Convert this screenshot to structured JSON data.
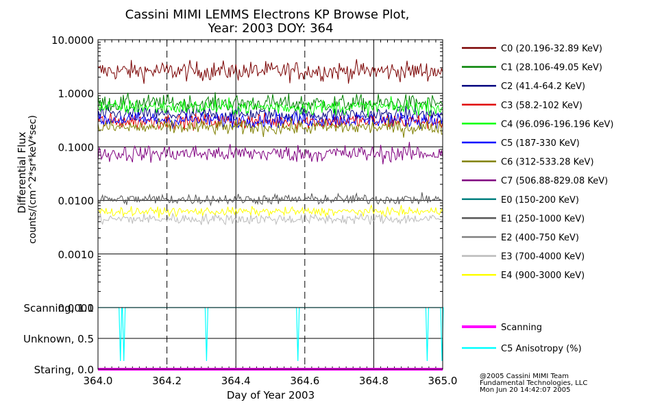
{
  "title_line1": "Cassini MIMI LEMMS Electrons KP Browse Plot,",
  "title_line2": "Year: 2003 DOY: 364",
  "footer": {
    "line1": "@2005 Cassini MIMI Team",
    "line2": "Fundamental Technologies, LLC",
    "line3": "Mon Jun 20 14:42:07 2005"
  },
  "chart_data": [
    {
      "type": "line",
      "title": "Cassini MIMI LEMMS Electrons KP Browse Plot, Year: 2003 DOY: 364",
      "xlabel": "",
      "ylabel_line1": "Differential Flux",
      "ylabel_line2": "counts/(cm^2*sr*keV*sec)",
      "yscale": "log",
      "ylim": [
        0.0001,
        10
      ],
      "xlim": [
        364.0,
        365.0
      ],
      "yticks": [
        "10.0000",
        "1.0000",
        "0.1000",
        "0.0100",
        "0.0010",
        "0.0001"
      ],
      "grid": true,
      "legend_position": "right",
      "series": [
        {
          "name": "C0 (20.196-32.89 KeV)",
          "color": "#7a0000",
          "level": 2.6,
          "noise": 0.09
        },
        {
          "name": "C1 (28.106-49.05 KeV)",
          "color": "#008000",
          "level": 0.65,
          "noise": 0.08
        },
        {
          "name": "C2 (41.4-64.2 KeV)",
          "color": "#000080",
          "level": 0.4,
          "noise": 0.07
        },
        {
          "name": "C3 (58.2-102 KeV)",
          "color": "#e00000",
          "level": 0.3,
          "noise": 0.07
        },
        {
          "name": "C4 (96.096-196.196 KeV)",
          "color": "#00ff00",
          "level": 0.55,
          "noise": 0.07
        },
        {
          "name": "C5 (187-330 KeV)",
          "color": "#0000ff",
          "level": 0.32,
          "noise": 0.07
        },
        {
          "name": "C6 (312-533.28 KeV)",
          "color": "#808000",
          "level": 0.23,
          "noise": 0.07
        },
        {
          "name": "C7 (506.88-829.08 KeV)",
          "color": "#800080",
          "level": 0.075,
          "noise": 0.08
        },
        {
          "name": "E0 (150-200 KeV)",
          "color": "#008080",
          "level": null,
          "noise": 0
        },
        {
          "name": "E1 (250-1000 KeV)",
          "color": "#555555",
          "level": 0.0105,
          "noise": 0.05
        },
        {
          "name": "E2 (400-750 KeV)",
          "color": "#808080",
          "level": null,
          "noise": 0
        },
        {
          "name": "E3 (700-4000 KeV)",
          "color": "#bbbbbb",
          "level": 0.0045,
          "noise": 0.05
        },
        {
          "name": "E4 (900-3000 KeV)",
          "color": "#ffff00",
          "level": 0.0062,
          "noise": 0.04
        }
      ]
    },
    {
      "type": "line",
      "xlabel": "Day of Year 2003",
      "xlim": [
        364.0,
        365.0
      ],
      "xticks": [
        "364.0",
        "364.2",
        "364.4",
        "364.6",
        "364.8",
        "365.0"
      ],
      "ylim": [
        0,
        1
      ],
      "yticks": [
        "Staring, 0.0",
        "Unknown, 0.5",
        "Scanning, 1.0"
      ],
      "series": [
        {
          "name": "Scanning",
          "color": "#ff00ff",
          "values": [
            0,
            0
          ]
        },
        {
          "name": "C5 Anisotropy (%)",
          "color": "#00ffff",
          "baseline": 1.0,
          "dips": [
            364.065,
            364.075,
            364.315,
            364.58,
            364.955,
            364.998
          ]
        }
      ]
    }
  ]
}
